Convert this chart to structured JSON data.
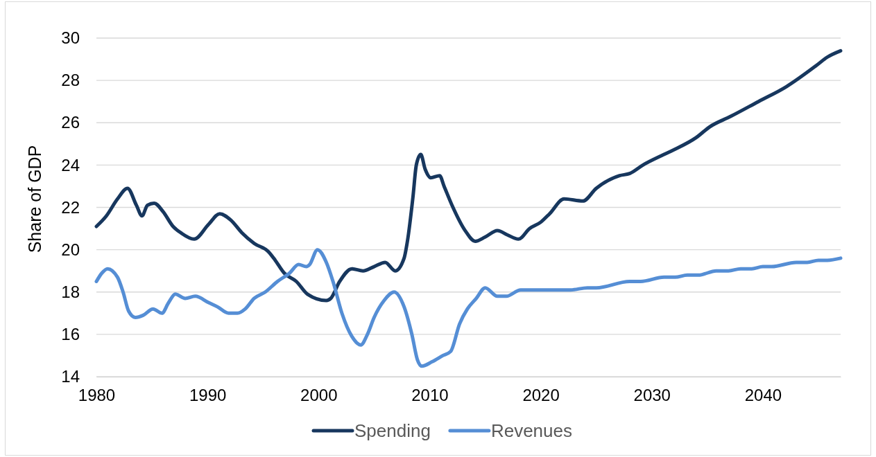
{
  "chart_data": {
    "type": "line",
    "ylabel": "Share of GDP",
    "xlim": [
      1980,
      2047
    ],
    "xticks": [
      1980,
      1990,
      2000,
      2010,
      2020,
      2030,
      2040
    ],
    "ylim": [
      14,
      30
    ],
    "yticks": [
      14,
      16,
      18,
      20,
      22,
      24,
      26,
      28,
      30
    ],
    "grid": "y",
    "legend": "bottom",
    "series": [
      {
        "name": "Spending",
        "color": "#17375e",
        "x": [
          1980.0,
          1980.9,
          1981.9,
          1982.8,
          1983.6,
          1984.1,
          1984.6,
          1985.2,
          1986.0,
          1986.9,
          1987.6,
          1988.8,
          1990.1,
          1991.1,
          1992.1,
          1993.1,
          1994.2,
          1995.5,
          1996.1,
          1996.9,
          1998.0,
          1999.0,
          2000.7,
          2001.1,
          2001.9,
          2003.0,
          2004.0,
          2005.0,
          2006.0,
          2006.9,
          2007.7,
          2008.0,
          2008.5,
          2008.8,
          2009.2,
          2009.6,
          2010.1,
          2010.9,
          2011.3,
          2012.1,
          2013.2,
          2014.1,
          2015.0,
          2016.1,
          2017.0,
          2018.0,
          2019.0,
          2020.0,
          2020.8,
          2022.1,
          2023.8,
          2025.0,
          2027.1,
          2028.0,
          2029.2,
          2031.1,
          2031.9,
          2034.0,
          2035.2,
          2037.1,
          2039.6,
          2042.1,
          2044.8,
          2045.8,
          2047.0
        ],
        "values": [
          21.1,
          21.6,
          22.4,
          22.9,
          22.1,
          21.6,
          22.1,
          22.2,
          21.8,
          21.1,
          20.8,
          20.5,
          21.2,
          21.7,
          21.4,
          20.8,
          20.3,
          19.9,
          19.5,
          18.9,
          18.5,
          17.9,
          17.6,
          17.7,
          18.5,
          19.1,
          19.0,
          19.2,
          19.4,
          19.0,
          19.6,
          20.4,
          22.5,
          24.0,
          24.5,
          23.8,
          23.4,
          23.5,
          23.0,
          22.0,
          20.9,
          20.4,
          20.6,
          20.9,
          20.7,
          20.5,
          21.0,
          21.3,
          21.7,
          22.4,
          22.3,
          22.9,
          23.5,
          23.6,
          24.0,
          24.5,
          24.7,
          25.3,
          25.8,
          26.3,
          27.0,
          27.7,
          28.7,
          29.1,
          29.4
        ]
      },
      {
        "name": "Revenues",
        "color": "#558ed5",
        "x": [
          1980.0,
          1980.5,
          1981.0,
          1981.9,
          1982.4,
          1982.9,
          1983.5,
          1984.2,
          1985.1,
          1985.9,
          1986.5,
          1987.1,
          1988.0,
          1988.9,
          1990.1,
          1990.9,
          1991.9,
          1992.7,
          1993.4,
          1994.2,
          1995.2,
          1996.3,
          1997.4,
          1998.2,
          1998.9,
          1999.2,
          1999.9,
          2000.7,
          2001.3,
          2002.1,
          2003.0,
          2003.8,
          2004.4,
          2005.0,
          2005.9,
          2006.8,
          2007.7,
          2008.4,
          2008.9,
          2009.3,
          2010.2,
          2011.2,
          2011.9,
          2012.7,
          2013.4,
          2014.2,
          2015.0,
          2016.1,
          2016.9,
          2018.2,
          2020.0,
          2022.7,
          2024.2,
          2025.0,
          2028.0,
          2029.0,
          2031.1,
          2032.1,
          2033.2,
          2034.2,
          2035.8,
          2036.9,
          2038.0,
          2039.0,
          2040.0,
          2040.8,
          2043.0,
          2044.0,
          2045.0,
          2045.8,
          2047.0
        ],
        "values": [
          18.5,
          18.9,
          19.1,
          18.7,
          18.0,
          17.1,
          16.8,
          16.9,
          17.2,
          17.0,
          17.5,
          17.9,
          17.7,
          17.8,
          17.5,
          17.3,
          17.0,
          17.0,
          17.2,
          17.7,
          18.0,
          18.5,
          18.9,
          19.3,
          19.2,
          19.3,
          20.0,
          19.4,
          18.5,
          17.0,
          15.9,
          15.5,
          16.0,
          16.8,
          17.6,
          18.0,
          17.3,
          16.0,
          14.8,
          14.5,
          14.7,
          15.0,
          15.2,
          16.5,
          17.2,
          17.7,
          18.2,
          17.8,
          17.8,
          18.1,
          18.1,
          18.1,
          18.2,
          18.2,
          18.5,
          18.5,
          18.7,
          18.7,
          18.8,
          18.8,
          19.0,
          19.0,
          19.1,
          19.1,
          19.2,
          19.2,
          19.4,
          19.4,
          19.5,
          19.5,
          19.6
        ]
      }
    ]
  }
}
